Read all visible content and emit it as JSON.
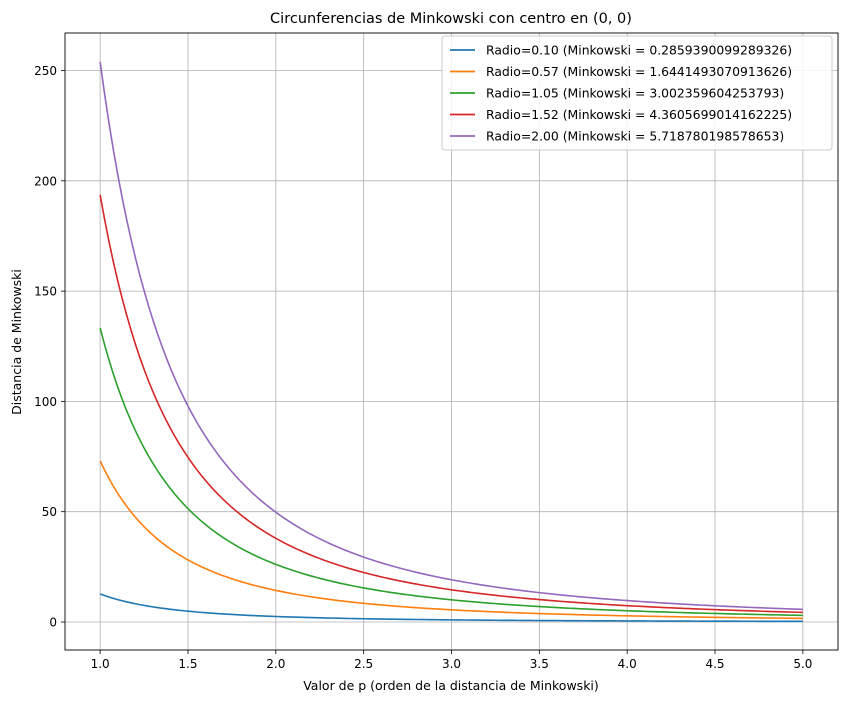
{
  "chart_data": {
    "type": "line",
    "title": "Circunferencias de Minkowski con centro en (0, 0)",
    "xlabel": "Valor de p (orden de la distancia de Minkowski)",
    "ylabel": "Distancia de Minkowski",
    "xlim": [
      0.8,
      5.2
    ],
    "ylim": [
      -12.7,
      267
    ],
    "xticks": [
      1.0,
      1.5,
      2.0,
      2.5,
      3.0,
      3.5,
      4.0,
      4.5,
      5.0
    ],
    "xtick_labels": [
      "1.0",
      "1.5",
      "2.0",
      "2.5",
      "3.0",
      "3.5",
      "4.0",
      "4.5",
      "5.0"
    ],
    "yticks": [
      0,
      50,
      100,
      150,
      200,
      250
    ],
    "ytick_labels": [
      "0",
      "50",
      "100",
      "150",
      "200",
      "250"
    ],
    "grid": true,
    "legend_position": "top-right",
    "x_range": [
      1.0,
      5.0
    ],
    "series": [
      {
        "name": "Radio=0.10 (Minkowski = 0.2859390099289326)",
        "color": "#1f77b4",
        "y_at_p1": 12.7,
        "y_at_p5": 0.286
      },
      {
        "name": "Radio=0.57 (Minkowski = 1.6441493070913626)",
        "color": "#ff7f0e",
        "y_at_p1": 73.0,
        "y_at_p5": 1.644
      },
      {
        "name": "Radio=1.05 (Minkowski = 3.002359604253793)",
        "color": "#2ca02c",
        "y_at_p1": 133.3,
        "y_at_p5": 3.002
      },
      {
        "name": "Radio=1.52 (Minkowski = 4.3605699014162225)",
        "color": "#d62728",
        "y_at_p1": 193.6,
        "y_at_p5": 4.361
      },
      {
        "name": "Radio=2.00 (Minkowski = 5.718780198578653)",
        "color": "#9467bd",
        "y_at_p1": 253.9,
        "y_at_p5": 5.719
      }
    ]
  }
}
